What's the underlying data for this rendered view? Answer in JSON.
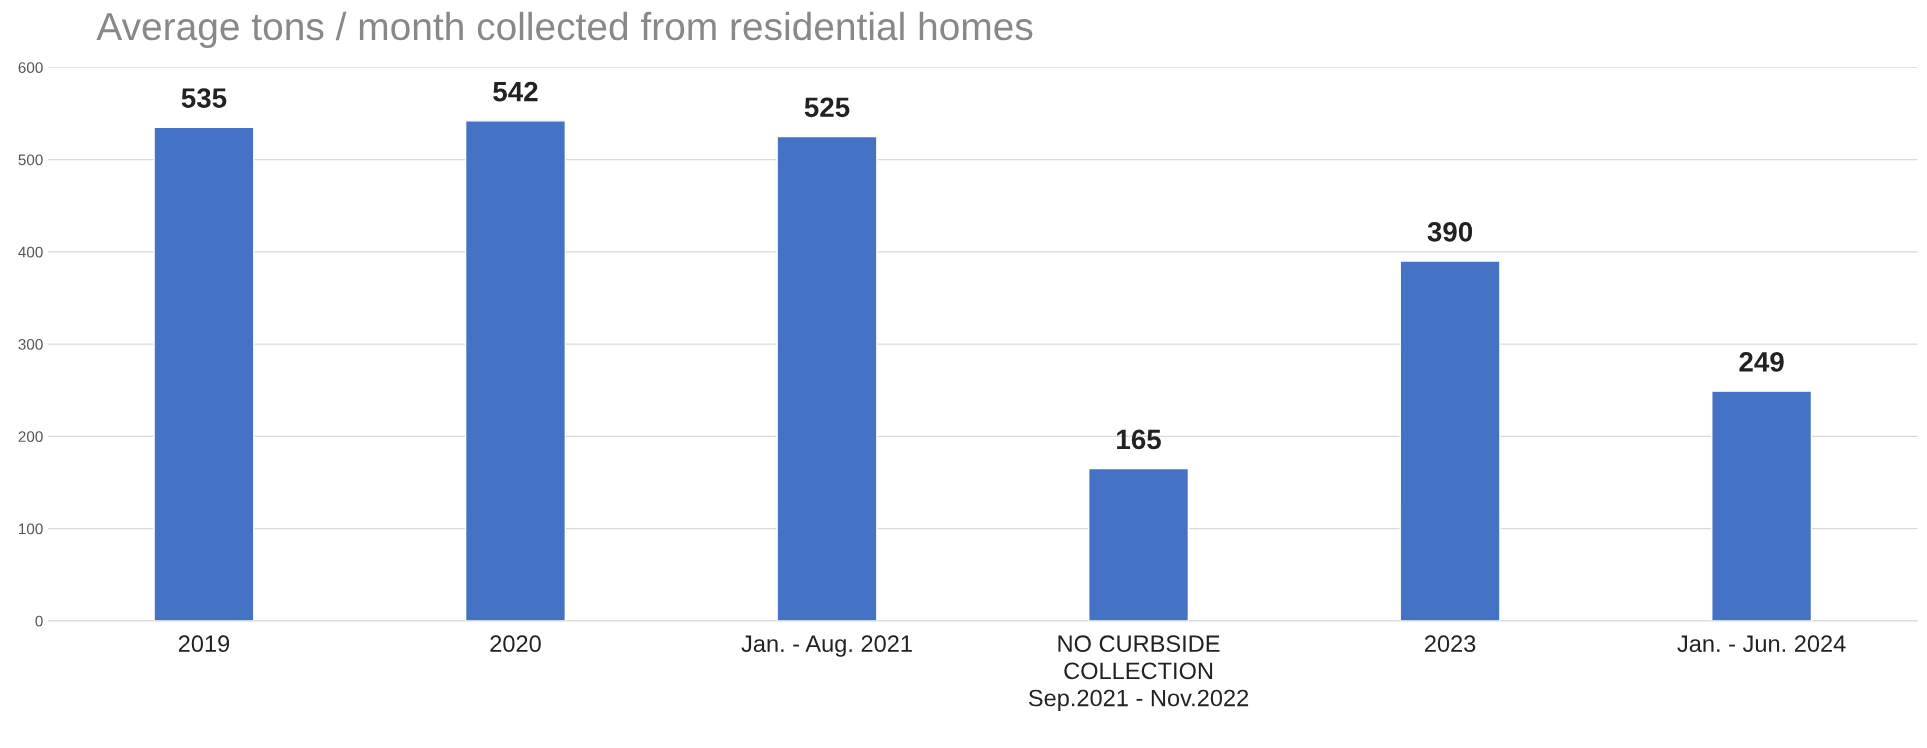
{
  "chart_data": {
    "type": "bar",
    "title": "Average tons / month collected from residential homes",
    "categories": [
      "2019",
      "2020",
      "Jan. - Aug. 2021",
      "NO CURBSIDE\nCOLLECTION\nSep.2021 - Nov.2022",
      "2023",
      "Jan. - Jun. 2024"
    ],
    "values": [
      535,
      542,
      525,
      165,
      390,
      249
    ],
    "color": "#4472c4",
    "ylim": [
      0,
      600
    ],
    "yticks": [
      0,
      100,
      200,
      300,
      400,
      500,
      600
    ],
    "grid": "y",
    "data_labels": true
  }
}
